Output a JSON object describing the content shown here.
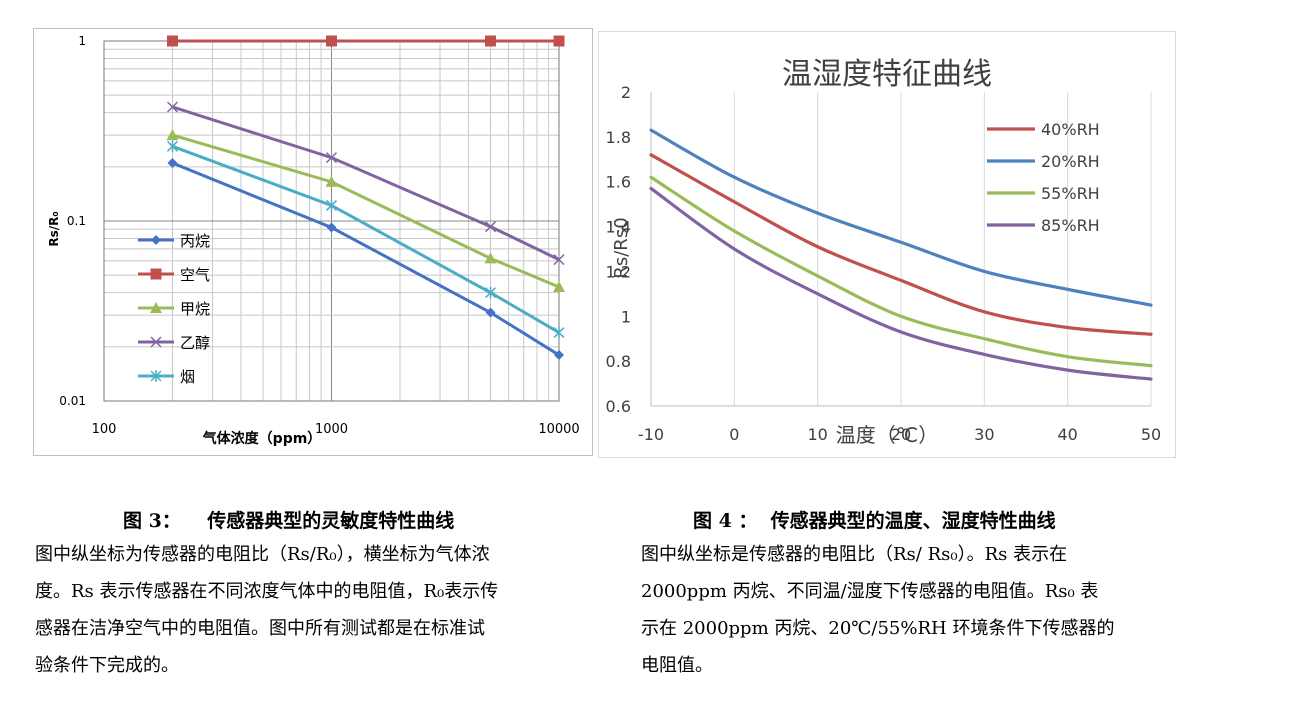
{
  "charts": {
    "fig3": {
      "legend": [
        "丙烷",
        "空气",
        "甲烷",
        "乙醇",
        "烟"
      ]
    }
  },
  "captions": {
    "fig3": "图 3：    传感器典型的灵敏度特性曲线",
    "fig4": "图 4 ：  传感器典型的温度、湿度特性曲线"
  },
  "paragraphs": {
    "fig3": [
      "图中纵坐标为传感器的电阻比（Rs/R₀），横坐标为气体浓",
      "度。Rs 表示传感器在不同浓度气体中的电阻值，R₀表示传",
      "感器在洁净空气中的电阻值。图中所有测试都是在标准试",
      "验条件下完成的。"
    ],
    "fig4": [
      "图中纵坐标是传感器的电阻比（Rs/ Rs₀）。Rs 表示在",
      "2000ppm 丙烷、不同温/湿度下传感器的电阻值。Rs₀ 表",
      "示在 2000ppm 丙烷、20℃/55%RH 环境条件下传感器的",
      "电阻值。"
    ]
  },
  "chart_data": [
    {
      "type": "line",
      "title": "",
      "xlabel": "气体浓度（ppm）",
      "ylabel": "Rs/R₀",
      "x_scale": "log",
      "y_scale": "log",
      "xlim": [
        100,
        10000
      ],
      "ylim": [
        0.01,
        1
      ],
      "x_ticks": [
        "100",
        "1000",
        "10000"
      ],
      "y_ticks": [
        "1",
        "0.1",
        "0.01"
      ],
      "grid": true,
      "legend_position": "left-bottom",
      "series": [
        {
          "name": "丙烷",
          "color": "#4472c4",
          "marker": "diamond",
          "x": [
            200,
            1000,
            5000,
            10000
          ],
          "y": [
            0.21,
            0.092,
            0.031,
            0.018
          ]
        },
        {
          "name": "空气",
          "color": "#c0504d",
          "marker": "square",
          "x": [
            200,
            1000,
            5000,
            10000
          ],
          "y": [
            1,
            1,
            1,
            1
          ]
        },
        {
          "name": "甲烷",
          "color": "#9bbb59",
          "marker": "triangle",
          "x": [
            200,
            1000,
            5000,
            10000
          ],
          "y": [
            0.3,
            0.165,
            0.062,
            0.043
          ]
        },
        {
          "name": "乙醇",
          "color": "#8064a2",
          "marker": "x",
          "x": [
            200,
            1000,
            5000,
            10000
          ],
          "y": [
            0.43,
            0.225,
            0.093,
            0.061
          ]
        },
        {
          "name": "烟",
          "color": "#4bacc6",
          "marker": "star",
          "x": [
            200,
            1000,
            5000,
            10000
          ],
          "y": [
            0.26,
            0.122,
            0.04,
            0.024
          ]
        }
      ]
    },
    {
      "type": "line",
      "title": "温湿度特征曲线",
      "xlabel": "温度（℃）",
      "ylabel": "Rs/Rs0",
      "xlim": [
        -10,
        50
      ],
      "ylim": [
        0.6,
        2
      ],
      "x_ticks": [
        -10,
        0,
        10,
        20,
        30,
        40,
        50
      ],
      "y_ticks": [
        0.6,
        0.8,
        1,
        1.2,
        1.4,
        1.6,
        1.8,
        2
      ],
      "grid": "vertical",
      "legend_position": "right",
      "series": [
        {
          "name": "40%RH",
          "color": "#c0504d",
          "x": [
            -10,
            0,
            10,
            20,
            30,
            40,
            50
          ],
          "y": [
            1.72,
            1.51,
            1.31,
            1.16,
            1.02,
            0.95,
            0.92
          ]
        },
        {
          "name": "20%RH",
          "color": "#4f81bd",
          "x": [
            -10,
            0,
            10,
            20,
            30,
            40,
            50
          ],
          "y": [
            1.83,
            1.62,
            1.46,
            1.33,
            1.2,
            1.12,
            1.05
          ]
        },
        {
          "name": "55%RH",
          "color": "#9bbb59",
          "x": [
            -10,
            0,
            10,
            20,
            30,
            40,
            50
          ],
          "y": [
            1.62,
            1.38,
            1.18,
            1.0,
            0.9,
            0.82,
            0.78
          ]
        },
        {
          "name": "85%RH",
          "color": "#8064a2",
          "x": [
            -10,
            0,
            10,
            20,
            30,
            40,
            50
          ],
          "y": [
            1.57,
            1.3,
            1.1,
            0.93,
            0.83,
            0.76,
            0.72
          ]
        }
      ]
    }
  ]
}
